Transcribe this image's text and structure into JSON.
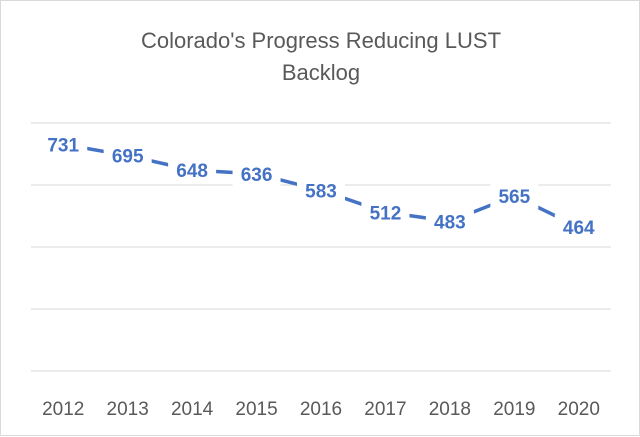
{
  "chart_data": {
    "type": "line",
    "title": "Colorado's Progress Reducing LUST Backlog",
    "title_lines": [
      "Colorado's Progress Reducing LUST",
      "Backlog"
    ],
    "categories": [
      "2012",
      "2013",
      "2014",
      "2015",
      "2016",
      "2017",
      "2018",
      "2019",
      "2020"
    ],
    "values": [
      731,
      695,
      648,
      636,
      583,
      512,
      483,
      565,
      464
    ],
    "ylim": [
      0,
      800
    ],
    "grid": true,
    "data_labels": true,
    "line_color": "#4472C4",
    "xlabel": "",
    "ylabel": ""
  }
}
